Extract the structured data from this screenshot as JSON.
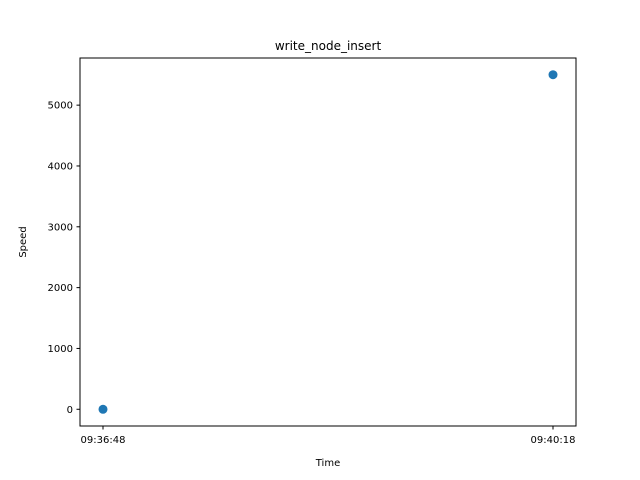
{
  "chart_data": {
    "type": "scatter",
    "title": "write_node_insert",
    "xlabel": "Time",
    "ylabel": "Speed",
    "x_ticks": [
      "09:36:48",
      "09:40:18"
    ],
    "points": [
      {
        "x": "09:36:48",
        "y": 0
      },
      {
        "x": "09:40:18",
        "y": 5500
      }
    ],
    "y_ticks": [
      0,
      1000,
      2000,
      3000,
      4000,
      5000
    ],
    "ylim": [
      -275,
      5775
    ],
    "grid": false,
    "legend": "none",
    "marker_color": "#1f77b4"
  }
}
